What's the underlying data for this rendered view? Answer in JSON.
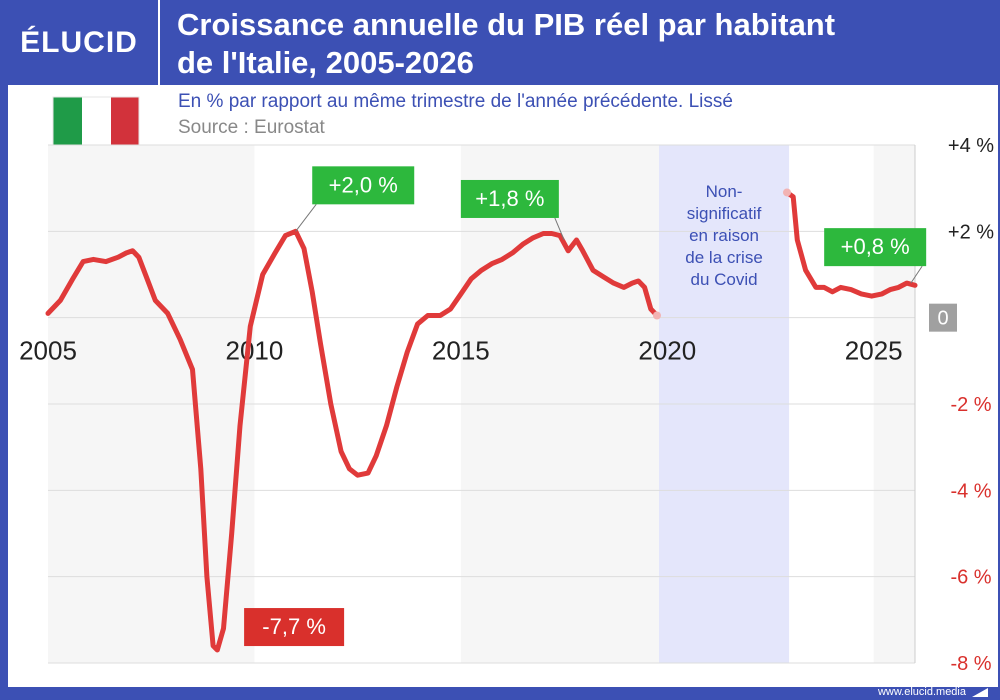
{
  "brand": {
    "logo": "ÉLUCID",
    "url": "www.elucid.media"
  },
  "header": {
    "title_line1": "Croissance annuelle du PIB réel par habitant",
    "title_line2": "de l'Italie, 2005-2026"
  },
  "subtitle": "En % par rapport au même trimestre de l'année précédente. Lissé",
  "source": "Source : Eurostat",
  "colors": {
    "frame": "#3c50b4",
    "line": "#e03a3a",
    "positive_label": "#2db83d",
    "negative_label": "#d9302c",
    "covid_band": "#e4e6fb",
    "zero_label": "#a0a0a0"
  },
  "chart_data": {
    "type": "line",
    "xlim": [
      2005,
      2026
    ],
    "ylim": [
      -8,
      4
    ],
    "x_ticks": [
      "2005",
      "2010",
      "2015",
      "2020",
      "2025"
    ],
    "y_ticks": [
      {
        "v": 4,
        "label": "+4 %"
      },
      {
        "v": 2,
        "label": "+2 %"
      },
      {
        "v": 0,
        "label": "0"
      },
      {
        "v": -2,
        "label": "-2 %"
      },
      {
        "v": -4,
        "label": "-4 %"
      },
      {
        "v": -6,
        "label": "-6 %"
      },
      {
        "v": -8,
        "label": "-8 %"
      }
    ],
    "series": [
      {
        "segment1": [
          [
            2005.0,
            0.1
          ],
          [
            2005.3,
            0.4
          ],
          [
            2005.6,
            0.9
          ],
          [
            2005.85,
            1.3
          ],
          [
            2006.1,
            1.35
          ],
          [
            2006.4,
            1.3
          ],
          [
            2006.7,
            1.4
          ],
          [
            2006.9,
            1.5
          ],
          [
            2007.05,
            1.55
          ],
          [
            2007.2,
            1.4
          ],
          [
            2007.4,
            0.9
          ],
          [
            2007.6,
            0.4
          ],
          [
            2007.9,
            0.1
          ],
          [
            2008.2,
            -0.5
          ],
          [
            2008.5,
            -1.2
          ],
          [
            2008.7,
            -3.5
          ],
          [
            2008.85,
            -6.0
          ],
          [
            2009.0,
            -7.6
          ],
          [
            2009.1,
            -7.7
          ],
          [
            2009.25,
            -7.2
          ],
          [
            2009.45,
            -5.0
          ],
          [
            2009.65,
            -2.5
          ],
          [
            2009.9,
            -0.2
          ],
          [
            2010.2,
            1.0
          ],
          [
            2010.5,
            1.5
          ],
          [
            2010.75,
            1.9
          ],
          [
            2011.0,
            2.0
          ],
          [
            2011.2,
            1.6
          ],
          [
            2011.4,
            0.6
          ],
          [
            2011.6,
            -0.6
          ],
          [
            2011.85,
            -2.0
          ],
          [
            2012.1,
            -3.1
          ],
          [
            2012.3,
            -3.5
          ],
          [
            2012.5,
            -3.65
          ],
          [
            2012.75,
            -3.6
          ],
          [
            2012.95,
            -3.2
          ],
          [
            2013.2,
            -2.5
          ],
          [
            2013.45,
            -1.6
          ],
          [
            2013.7,
            -0.8
          ],
          [
            2013.95,
            -0.15
          ],
          [
            2014.2,
            0.05
          ],
          [
            2014.5,
            0.05
          ],
          [
            2014.75,
            0.2
          ],
          [
            2015.0,
            0.55
          ],
          [
            2015.25,
            0.9
          ],
          [
            2015.5,
            1.1
          ],
          [
            2015.75,
            1.25
          ],
          [
            2016.0,
            1.35
          ],
          [
            2016.25,
            1.5
          ],
          [
            2016.5,
            1.7
          ],
          [
            2016.75,
            1.85
          ],
          [
            2017.0,
            1.95
          ],
          [
            2017.2,
            1.95
          ],
          [
            2017.4,
            1.9
          ],
          [
            2017.6,
            1.55
          ],
          [
            2017.8,
            1.8
          ],
          [
            2017.95,
            1.55
          ],
          [
            2018.2,
            1.1
          ],
          [
            2018.45,
            0.95
          ],
          [
            2018.7,
            0.8
          ],
          [
            2018.95,
            0.7
          ],
          [
            2019.15,
            0.8
          ],
          [
            2019.3,
            0.85
          ],
          [
            2019.45,
            0.7
          ],
          [
            2019.6,
            0.2
          ],
          [
            2019.75,
            0.05
          ]
        ],
        "segment2": [
          [
            2022.9,
            2.9
          ],
          [
            2023.05,
            2.8
          ],
          [
            2023.15,
            1.8
          ],
          [
            2023.35,
            1.1
          ],
          [
            2023.6,
            0.7
          ],
          [
            2023.8,
            0.7
          ],
          [
            2024.0,
            0.6
          ],
          [
            2024.2,
            0.7
          ],
          [
            2024.45,
            0.65
          ],
          [
            2024.7,
            0.55
          ],
          [
            2024.95,
            0.5
          ],
          [
            2025.2,
            0.55
          ],
          [
            2025.4,
            0.65
          ],
          [
            2025.6,
            0.7
          ],
          [
            2025.8,
            0.8
          ],
          [
            2026.0,
            0.75
          ]
        ]
      }
    ],
    "covid_band": {
      "from": 2019.8,
      "to": 2022.95,
      "label": [
        "Non-",
        "significatif",
        "en raison",
        "de la crise",
        "du Covid"
      ]
    },
    "annotations": [
      {
        "label": "+2,0 %",
        "x": 2011.0,
        "y": 2.0
      },
      {
        "label": "+1,8 %",
        "x": 2017.5,
        "y": 1.8
      },
      {
        "label": "-7,7 %",
        "x": 2009.1,
        "y": -7.7
      },
      {
        "label": "+0,8 %",
        "x": 2025.9,
        "y": 0.8
      }
    ],
    "title": "Croissance annuelle du PIB réel par habitant de l'Italie, 2005-2026",
    "xlabel": "",
    "ylabel": ""
  }
}
